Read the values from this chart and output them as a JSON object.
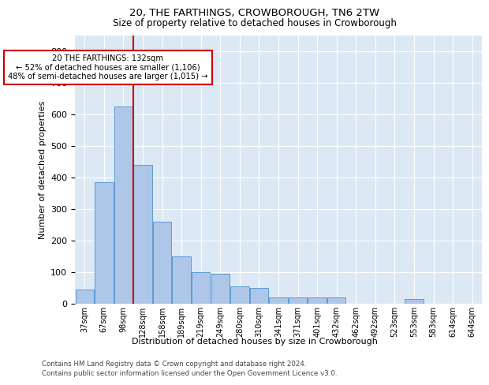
{
  "title1": "20, THE FARTHINGS, CROWBOROUGH, TN6 2TW",
  "title2": "Size of property relative to detached houses in Crowborough",
  "xlabel": "Distribution of detached houses by size in Crowborough",
  "ylabel": "Number of detached properties",
  "categories": [
    "37sqm",
    "67sqm",
    "98sqm",
    "128sqm",
    "158sqm",
    "189sqm",
    "219sqm",
    "249sqm",
    "280sqm",
    "310sqm",
    "341sqm",
    "371sqm",
    "401sqm",
    "432sqm",
    "462sqm",
    "492sqm",
    "523sqm",
    "553sqm",
    "583sqm",
    "614sqm",
    "644sqm"
  ],
  "values": [
    45,
    385,
    625,
    440,
    260,
    150,
    100,
    95,
    55,
    50,
    20,
    20,
    20,
    20,
    0,
    0,
    0,
    15,
    0,
    0,
    0
  ],
  "bar_color": "#aec6e8",
  "bar_edge_color": "#5b9bd5",
  "vline_color": "#cc0000",
  "annotation_text": "20 THE FARTHINGS: 132sqm\n← 52% of detached houses are smaller (1,106)\n48% of semi-detached houses are larger (1,015) →",
  "annotation_box_color": "#cc0000",
  "ylim": [
    0,
    850
  ],
  "yticks": [
    0,
    100,
    200,
    300,
    400,
    500,
    600,
    700,
    800
  ],
  "footer1": "Contains HM Land Registry data © Crown copyright and database right 2024.",
  "footer2": "Contains public sector information licensed under the Open Government Licence v3.0.",
  "plot_bg_color": "#dce9f5"
}
